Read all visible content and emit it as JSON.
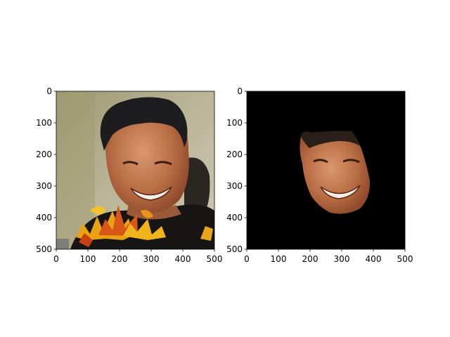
{
  "chart_data": [
    {
      "type": "image",
      "panel": "left",
      "content": "photo of smiling man with autumn leaves overlay",
      "xlim": [
        0,
        500
      ],
      "ylim": [
        500,
        0
      ],
      "x_ticks": [
        0,
        100,
        200,
        300,
        400,
        500
      ],
      "y_ticks": [
        0,
        100,
        200,
        300,
        400,
        500
      ],
      "x_tick_labels": [
        "0",
        "100",
        "200",
        "300",
        "400",
        "500"
      ],
      "y_tick_labels": [
        "0",
        "100",
        "200",
        "300",
        "400",
        "500"
      ]
    },
    {
      "type": "image",
      "panel": "right",
      "content": "segmented face on black background",
      "xlim": [
        0,
        500
      ],
      "ylim": [
        500,
        0
      ],
      "x_ticks": [
        0,
        100,
        200,
        300,
        400,
        500
      ],
      "y_ticks": [
        0,
        100,
        200,
        300,
        400,
        500
      ],
      "x_tick_labels": [
        "0",
        "100",
        "200",
        "300",
        "400",
        "500"
      ],
      "y_tick_labels": [
        "0",
        "100",
        "200",
        "300",
        "400",
        "500"
      ]
    }
  ]
}
